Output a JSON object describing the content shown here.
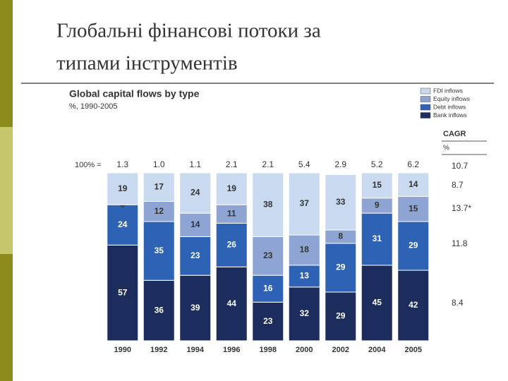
{
  "slide_title": [
    "Глобальні фінансові потоки за",
    "типами інструментів"
  ],
  "chart_data": {
    "type": "stacked_bar_100",
    "title": "Global capital flows by type",
    "subtitle": "%, 1990-2005",
    "categories": [
      "1990",
      "1992",
      "1994",
      "1996",
      "1998",
      "2000",
      "2002",
      "2004",
      "2005"
    ],
    "ylim": [
      0,
      100
    ],
    "series": [
      {
        "name": "FDI inflows",
        "color": "#c9d9ef",
        "values": [
          19,
          17,
          24,
          19,
          38,
          37,
          33,
          15,
          14
        ]
      },
      {
        "name": "Equity inflows",
        "color": "#8ea4d2",
        "values": [
          0,
          12,
          14,
          11,
          23,
          18,
          8,
          9,
          15
        ]
      },
      {
        "name": "Debt inflows",
        "color": "#2e62b5",
        "values": [
          24,
          35,
          23,
          26,
          16,
          13,
          29,
          31,
          29
        ]
      },
      {
        "name": "Bank inflows",
        "color": "#1c2c5c",
        "values": [
          57,
          36,
          39,
          44,
          23,
          32,
          29,
          45,
          42
        ]
      }
    ],
    "totals": {
      "label": "100% =",
      "values": [
        1.3,
        1.0,
        1.1,
        2.1,
        2.1,
        5.4,
        2.9,
        5.2,
        6.2
      ],
      "value_labels": [
        "1.3",
        "1.0",
        "1.1",
        "2.1",
        "2.1",
        "5.4",
        "2.9",
        "5.2",
        "6.2"
      ]
    },
    "cagr": {
      "label": "CAGR",
      "unit": "%",
      "values": [
        10.7,
        8.7,
        13.7,
        11.8,
        8.4
      ],
      "value_labels": [
        "10.7",
        "8.7",
        "13.7*",
        "11.8",
        "8.4"
      ]
    }
  }
}
